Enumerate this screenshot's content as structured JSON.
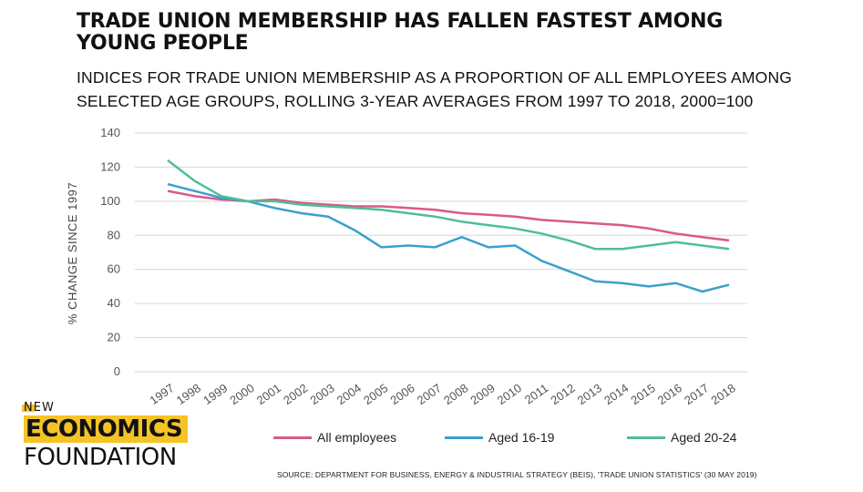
{
  "title": "TRADE UNION MEMBERSHIP HAS FALLEN FASTEST AMONG YOUNG PEOPLE",
  "subtitle": "INDICES FOR TRADE UNION MEMBERSHIP AS A PROPORTION OF ALL EMPLOYEES AMONG SELECTED AGE GROUPS, ROLLING 3-YEAR AVERAGES FROM 1997 TO 2018, 2000=100",
  "source": "SOURCE:  DEPARTMENT FOR BUSINESS, ENERGY & INDUSTRIAL STRATEGY (BEIS), 'TRADE UNION STATISTICS' (30 MAY 2019)",
  "logo": {
    "line1": "NEW",
    "line2": "ECONOMICS",
    "line3": "FOUNDATION"
  },
  "chart_data": {
    "type": "line",
    "ylabel": "% CHANGE SINCE 1997",
    "xlabel": "",
    "ylim": [
      0,
      140
    ],
    "yticks": [
      0,
      20,
      40,
      60,
      80,
      100,
      120,
      140
    ],
    "grid": true,
    "legend_position": "bottom",
    "x": [
      "1997",
      "1998",
      "1999",
      "2000",
      "2001",
      "2002",
      "2003",
      "2004",
      "2005",
      "2006",
      "2007",
      "2008",
      "2009",
      "2010",
      "2011",
      "2012",
      "2013",
      "2014",
      "2015",
      "2016",
      "2017",
      "2018"
    ],
    "series": [
      {
        "name": "All employees",
        "color": "#d9598a",
        "values": [
          106,
          103,
          101,
          100,
          101,
          99,
          98,
          97,
          97,
          96,
          95,
          93,
          92,
          91,
          89,
          88,
          87,
          86,
          84,
          81,
          79,
          77
        ]
      },
      {
        "name": "Aged 16-19",
        "color": "#3c9fcf",
        "values": [
          110,
          106,
          102,
          100,
          96,
          93,
          91,
          83,
          73,
          74,
          73,
          79,
          73,
          74,
          65,
          59,
          53,
          52,
          50,
          52,
          47,
          51
        ]
      },
      {
        "name": "Aged 20-24",
        "color": "#4fbf94",
        "values": [
          124,
          112,
          103,
          100,
          100,
          98,
          97,
          96,
          95,
          93,
          91,
          88,
          86,
          84,
          81,
          77,
          72,
          72,
          74,
          76,
          74,
          72
        ]
      }
    ]
  }
}
